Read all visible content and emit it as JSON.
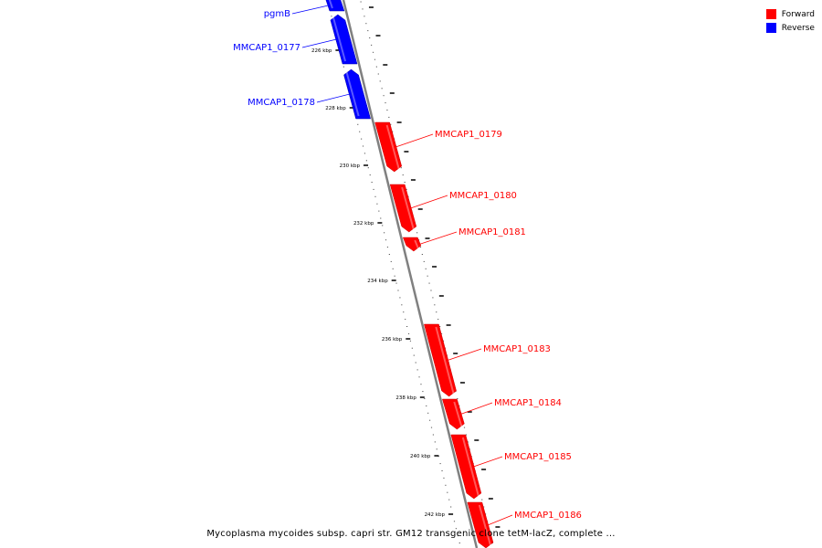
{
  "legend": {
    "forward_label": "Forward",
    "reverse_label": "Reverse",
    "forward_color": "#ff0000",
    "reverse_color": "#0000ff"
  },
  "backbone_color": "#808080",
  "caption": "Mycoplasma mycoides subsp. capri str. GM12 transgenic clone tetM-lacZ, complete ...",
  "tick_labels": [
    "226 kbp",
    "228 kbp",
    "230 kbp",
    "232 kbp",
    "234 kbp",
    "236 kbp",
    "238 kbp",
    "240 kbp",
    "242 kbp"
  ],
  "genes": [
    {
      "label": "pgmB",
      "strand": "reverse"
    },
    {
      "label": "MMCAP1_0177",
      "strand": "reverse"
    },
    {
      "label": "MMCAP1_0178",
      "strand": "reverse"
    },
    {
      "label": "MMCAP1_0179",
      "strand": "forward"
    },
    {
      "label": "MMCAP1_0180",
      "strand": "forward"
    },
    {
      "label": "MMCAP1_0181",
      "strand": "forward"
    },
    {
      "label": "MMCAP1_0183",
      "strand": "forward"
    },
    {
      "label": "MMCAP1_0184",
      "strand": "forward"
    },
    {
      "label": "MMCAP1_0185",
      "strand": "forward"
    },
    {
      "label": "MMCAP1_0186",
      "strand": "forward"
    }
  ]
}
